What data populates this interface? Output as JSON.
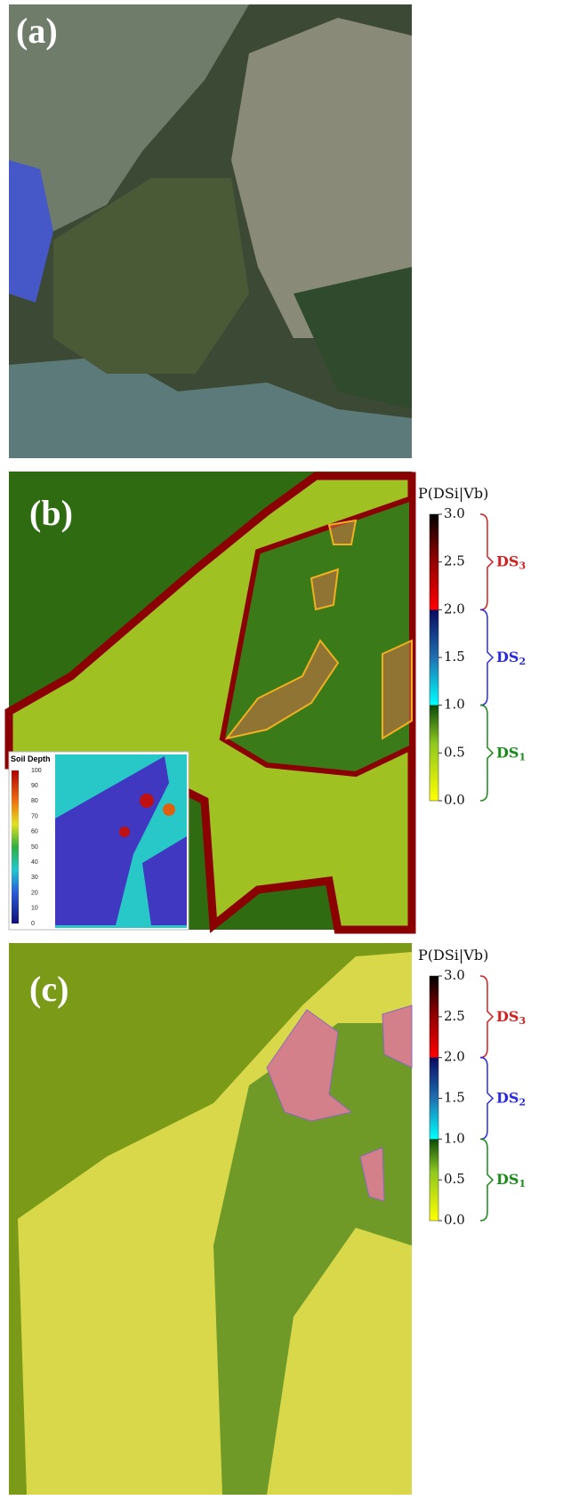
{
  "panels": [
    {
      "label": "(a)"
    },
    {
      "label": "(b)",
      "colorbar": {
        "title": "P(DSi|Vb)",
        "ticks": [
          "3.0",
          "2.5",
          "2.0",
          "1.5",
          "1.0",
          "0.5",
          "0.0"
        ],
        "classes": [
          {
            "name": "DS",
            "sub": "3",
            "color": "#d42020"
          },
          {
            "name": "DS",
            "sub": "2",
            "color": "#2a2ae0"
          },
          {
            "name": "DS",
            "sub": "1",
            "color": "#1a8a1a"
          }
        ]
      },
      "inset": {
        "title": "Soil Depth",
        "ticks": [
          "100",
          "90",
          "80",
          "70",
          "60",
          "50",
          "40",
          "30",
          "20",
          "10",
          "0"
        ]
      }
    },
    {
      "label": "(c)",
      "colorbar": {
        "title": "P(DSi|Vb)",
        "ticks": [
          "3.0",
          "2.5",
          "2.0",
          "1.5",
          "1.0",
          "0.5",
          "0.0"
        ],
        "classes": [
          {
            "name": "DS",
            "sub": "3",
            "color": "#d42020"
          },
          {
            "name": "DS",
            "sub": "2",
            "color": "#2a2ae0"
          },
          {
            "name": "DS",
            "sub": "1",
            "color": "#1a8a1a"
          }
        ]
      }
    }
  ]
}
